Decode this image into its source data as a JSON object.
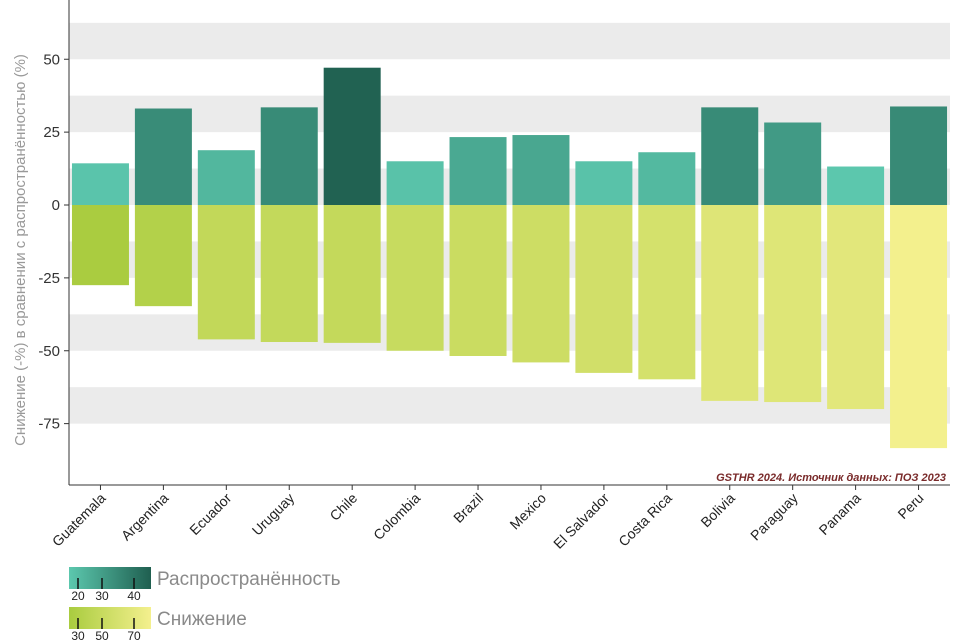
{
  "chart_data": {
    "type": "bar",
    "ylabel": "Снижение (-%) в сравнении с распространённостью (%)",
    "source_note": "GSTHR 2024. Источник данных: ПОЗ 2023",
    "yticks": [
      50,
      25,
      0,
      -25,
      -50,
      -75
    ],
    "ylim": [
      -95,
      68
    ],
    "categories": [
      "Guatemala",
      "Argentina",
      "Ecuador",
      "Uruguay",
      "Chile",
      "Colombia",
      "Brazil",
      "Mexico",
      "El Salvador",
      "Costa Rica",
      "Bolivia",
      "Paraguay",
      "Panama",
      "Peru"
    ],
    "series": [
      {
        "name": "Распространённость",
        "values": [
          14.3,
          33.1,
          18.8,
          33.5,
          47.1,
          15.0,
          23.3,
          24.0,
          15.0,
          18.1,
          33.5,
          28.3,
          13.2,
          33.8
        ],
        "color_scale": [
          "#5cc8ae",
          "#1f5f50"
        ],
        "legend_ticks": [
          "20",
          "30",
          "40"
        ]
      },
      {
        "name": "Снижение",
        "values": [
          -27.5,
          -34.7,
          -46.1,
          -47.0,
          -47.3,
          -50.0,
          -51.8,
          -54.0,
          -57.6,
          -59.8,
          -67.2,
          -67.6,
          -70.0,
          -83.4
        ],
        "color_scale": [
          "#a9cc3f",
          "#f4f08e"
        ],
        "legend_ticks": [
          "30",
          "50",
          "70"
        ]
      }
    ],
    "grid": "alternating horizontal bands"
  }
}
